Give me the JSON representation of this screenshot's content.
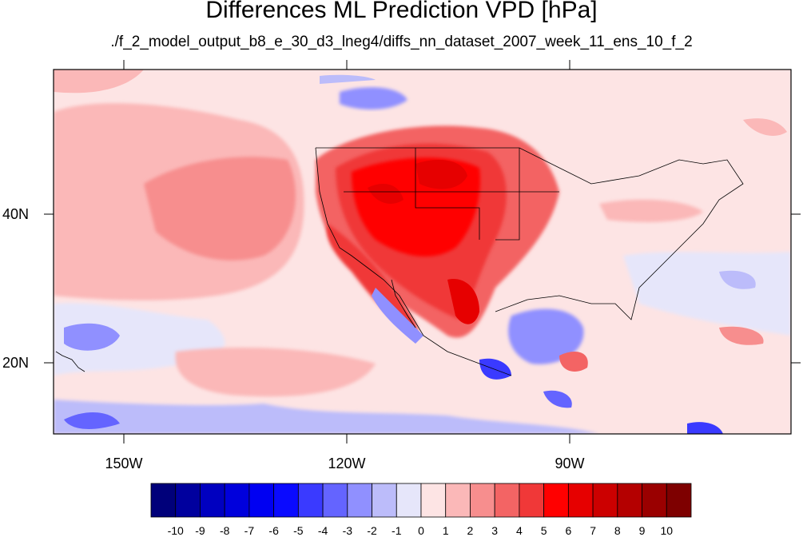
{
  "title": "Differences ML Prediction VPD [hPa]",
  "subtitle": "./f_2_model_output_b8_e_30_d3_lneg4/diffs_nn_dataset_2007_week_11_ens_10_f_2",
  "map": {
    "lat_labels": [
      "40N",
      "20N"
    ],
    "lon_labels": [
      "150W",
      "120W",
      "90W"
    ],
    "background_color": "#fde4e4"
  },
  "colorbar": {
    "labels": [
      "-10",
      "-9",
      "-8",
      "-7",
      "-6",
      "-5",
      "-4",
      "-3",
      "-2",
      "-1",
      "0",
      "1",
      "2",
      "3",
      "4",
      "5",
      "6",
      "7",
      "8",
      "9",
      "10"
    ],
    "colors": [
      "#00007a",
      "#00009e",
      "#0000c0",
      "#0000dc",
      "#0000f2",
      "#0a0aff",
      "#3a3aff",
      "#6464ff",
      "#9090ff",
      "#bcbcfa",
      "#e6e6fa",
      "#fde4e4",
      "#fbb8b8",
      "#f78e8e",
      "#f36464",
      "#f03838",
      "#ff0000",
      "#e60000",
      "#cc0000",
      "#b40000",
      "#9a0000",
      "#7e0000"
    ]
  }
}
